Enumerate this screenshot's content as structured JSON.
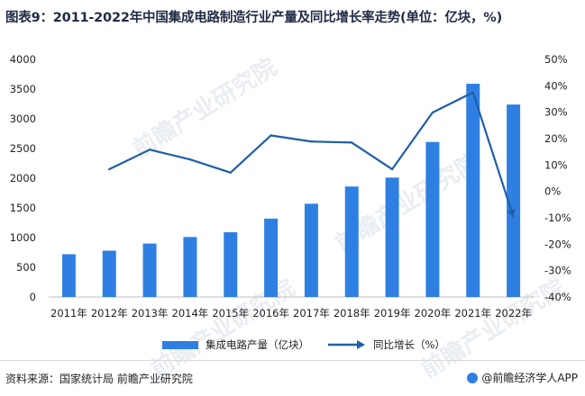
{
  "title": "图表9：2011-2022年中国集成电路制造行业产量及同比增长率走势(单位：亿块，%)",
  "watermark_text": "前瞻产业研究院",
  "source": "资料来源：国家统计局 前瞻产业研究院",
  "brand": "@前瞻经济学人APP",
  "colors": {
    "bar": "#2f7fe3",
    "line": "#1f5fa8",
    "axis_text": "#222222"
  },
  "chart_data": {
    "type": "bar",
    "categories": [
      "2011年",
      "2012年",
      "2013年",
      "2014年",
      "2015年",
      "2016年",
      "2017年",
      "2018年",
      "2019年",
      "2020年",
      "2021年",
      "2022年"
    ],
    "series": [
      {
        "name": "集成电路产量（亿块）",
        "type": "bar",
        "axis": "left",
        "values": [
          720,
          780,
          900,
          1010,
          1090,
          1320,
          1570,
          1860,
          2010,
          2610,
          3590,
          3240
        ]
      },
      {
        "name": "同比增长（%）",
        "type": "line",
        "axis": "right",
        "values": [
          null,
          8.4,
          15.8,
          12.1,
          7.1,
          21.2,
          18.9,
          18.5,
          8.4,
          29.9,
          37.5,
          -9.7
        ]
      }
    ],
    "left_axis": {
      "ticks": [
        0,
        500,
        1000,
        1500,
        2000,
        2500,
        3000,
        3500,
        4000
      ],
      "ylim": [
        0,
        4000
      ]
    },
    "right_axis": {
      "ticks": [
        "-40%",
        "-30%",
        "-20%",
        "-10%",
        "0%",
        "10%",
        "20%",
        "30%",
        "40%",
        "50%"
      ],
      "ylim": [
        -40,
        50
      ]
    },
    "legend_position": "bottom",
    "grid": false
  }
}
